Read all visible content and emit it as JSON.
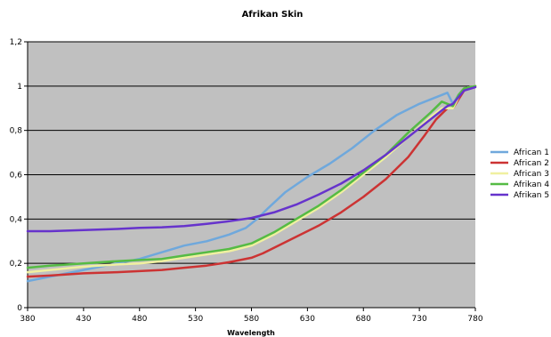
{
  "chart_data": {
    "type": "line",
    "title": "Afrikan Skin",
    "xlabel": "Wavelength",
    "ylabel": "",
    "xlim": [
      380,
      780
    ],
    "ylim": [
      0,
      1.2
    ],
    "x_ticks": [
      "380",
      "430",
      "480",
      "530",
      "580",
      "630",
      "680",
      "730",
      "780"
    ],
    "y_ticks": [
      "0",
      "0,2",
      "0,4",
      "0,6",
      "0,8",
      "1",
      "1,2"
    ],
    "grid": true,
    "legend_position": "right",
    "plot_background": "#c0c0c0",
    "series": [
      {
        "name": "African 1",
        "color": "#6fa8dc",
        "x": [
          380,
          400,
          430,
          460,
          480,
          500,
          520,
          540,
          560,
          575,
          585,
          595,
          610,
          630,
          650,
          670,
          690,
          710,
          730,
          745,
          755,
          760,
          765,
          770,
          780
        ],
        "y": [
          0.12,
          0.14,
          0.17,
          0.2,
          0.22,
          0.25,
          0.28,
          0.3,
          0.33,
          0.36,
          0.4,
          0.45,
          0.52,
          0.59,
          0.65,
          0.72,
          0.8,
          0.87,
          0.92,
          0.95,
          0.97,
          0.92,
          0.96,
          0.99,
          1.0
        ]
      },
      {
        "name": "African 2",
        "color": "#cc3333",
        "x": [
          380,
          400,
          430,
          460,
          480,
          500,
          520,
          540,
          560,
          580,
          590,
          600,
          620,
          640,
          660,
          680,
          700,
          720,
          735,
          745,
          755,
          760,
          765,
          770,
          780
        ],
        "y": [
          0.14,
          0.145,
          0.155,
          0.16,
          0.165,
          0.17,
          0.18,
          0.19,
          0.205,
          0.225,
          0.245,
          0.27,
          0.32,
          0.37,
          0.43,
          0.5,
          0.58,
          0.68,
          0.78,
          0.85,
          0.9,
          0.9,
          0.94,
          0.98,
          1.0
        ]
      },
      {
        "name": "African 3",
        "color": "#f0f0a0",
        "x": [
          380,
          400,
          430,
          460,
          480,
          500,
          520,
          540,
          560,
          580,
          600,
          620,
          640,
          660,
          680,
          700,
          720,
          740,
          750,
          755,
          760,
          765,
          770,
          780
        ],
        "y": [
          0.16,
          0.17,
          0.185,
          0.195,
          0.2,
          0.21,
          0.225,
          0.24,
          0.255,
          0.28,
          0.33,
          0.39,
          0.45,
          0.52,
          0.6,
          0.68,
          0.77,
          0.86,
          0.9,
          0.9,
          0.9,
          0.95,
          0.99,
          1.0
        ]
      },
      {
        "name": "Afrikan 4",
        "color": "#55bb44",
        "x": [
          380,
          400,
          430,
          460,
          480,
          500,
          520,
          540,
          560,
          580,
          600,
          620,
          640,
          660,
          680,
          700,
          720,
          740,
          750,
          755,
          760,
          765,
          770,
          780
        ],
        "y": [
          0.18,
          0.19,
          0.2,
          0.21,
          0.215,
          0.22,
          0.235,
          0.25,
          0.265,
          0.29,
          0.34,
          0.4,
          0.46,
          0.53,
          0.61,
          0.69,
          0.79,
          0.88,
          0.93,
          0.92,
          0.91,
          0.96,
          0.99,
          1.0
        ]
      },
      {
        "name": "Afrikan 5",
        "color": "#6633cc",
        "x": [
          380,
          400,
          430,
          460,
          480,
          500,
          520,
          540,
          560,
          580,
          600,
          620,
          640,
          660,
          680,
          700,
          720,
          740,
          750,
          755,
          760,
          765,
          770,
          780
        ],
        "y": [
          0.345,
          0.345,
          0.35,
          0.355,
          0.36,
          0.363,
          0.368,
          0.378,
          0.39,
          0.405,
          0.43,
          0.465,
          0.51,
          0.56,
          0.62,
          0.69,
          0.77,
          0.85,
          0.89,
          0.91,
          0.92,
          0.95,
          0.98,
          0.995
        ]
      }
    ]
  }
}
